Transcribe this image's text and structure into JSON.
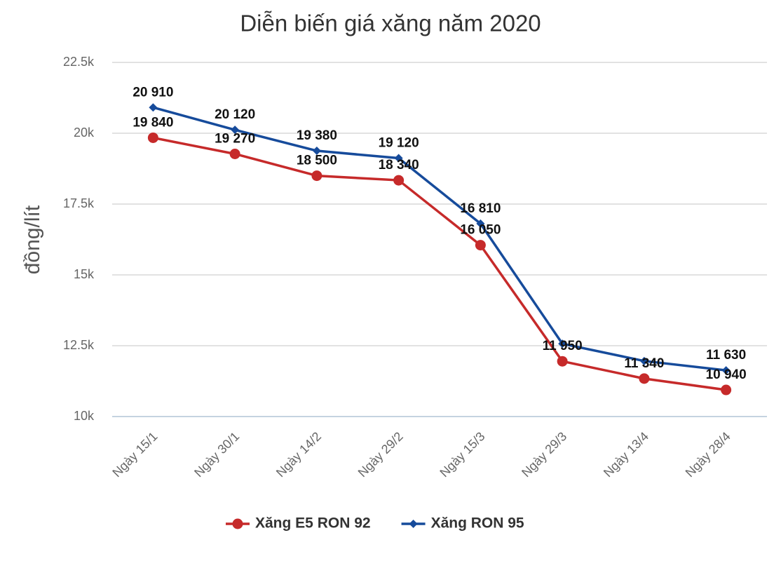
{
  "chart_data": {
    "type": "line",
    "title": "Diễn biến giá xăng năm 2020",
    "y_label": "đồng/lít",
    "categories": [
      "Ngày 15/1",
      "Ngày 30/1",
      "Ngày 14/2",
      "Ngày 29/2",
      "Ngày 15/3",
      "Ngày 29/3",
      "Ngày 13/4",
      "Ngày 28/4"
    ],
    "series": [
      {
        "name": "Xăng E5 RON 92",
        "color": "#c62a2a",
        "marker": "circle",
        "values": [
          19840,
          19270,
          18500,
          18340,
          16050,
          11950,
          11340,
          10940
        ],
        "value_labels": [
          "19 840",
          "19 270",
          "18 500",
          "18 340",
          "16 050",
          "11 950",
          "11 340",
          "10 940"
        ]
      },
      {
        "name": "Xăng RON 95",
        "color": "#164b9b",
        "marker": "diamond",
        "values": [
          20910,
          20120,
          19380,
          19120,
          16810,
          12570,
          11960,
          11630
        ],
        "value_labels": [
          "20 910",
          "20 120",
          "19 380",
          "19 120",
          "16 810",
          null,
          null,
          "11 630"
        ]
      }
    ],
    "ylim": [
      10000,
      22500
    ],
    "yticks": [
      {
        "value": 10000,
        "label": "10k"
      },
      {
        "value": 12500,
        "label": "12.5k"
      },
      {
        "value": 15000,
        "label": "15k"
      },
      {
        "value": 17500,
        "label": "17.5k"
      },
      {
        "value": 20000,
        "label": "20k"
      },
      {
        "value": 22500,
        "label": "22.5k"
      }
    ],
    "grid": true,
    "legend": "bottom"
  }
}
